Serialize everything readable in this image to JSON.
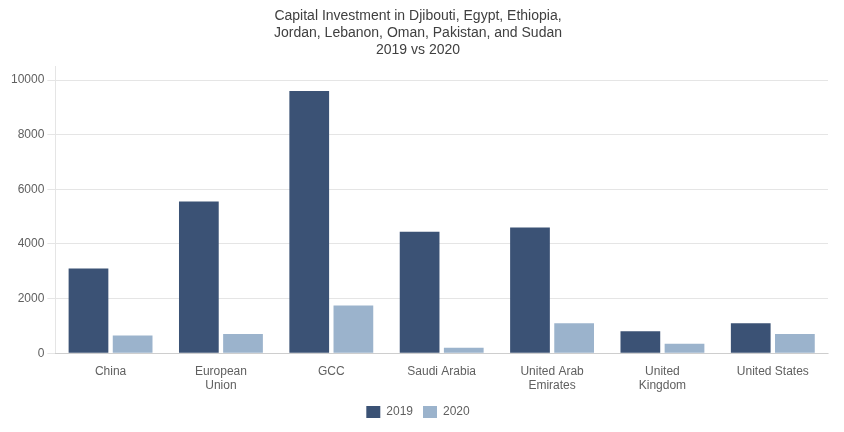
{
  "chart_data": {
    "type": "bar",
    "title": "Capital Investment in Djibouti, Egypt, Ethiopia,\nJordan, Lebanon, Oman, Pakistan, and Sudan\n2019 vs 2020",
    "categories": [
      "China",
      "European\nUnion",
      "GCC",
      "Saudi Arabia",
      "United Arab\nEmirates",
      "United\nKingdom",
      "United States"
    ],
    "series": [
      {
        "name": "2019",
        "color": "#3B5275",
        "values": [
          3100,
          5550,
          9600,
          4450,
          4600,
          800,
          1100
        ]
      },
      {
        "name": "2020",
        "color": "#9BB3CC",
        "values": [
          650,
          700,
          1750,
          200,
          1100,
          350,
          700
        ]
      }
    ],
    "ylim": [
      0,
      10500
    ],
    "yticks": [
      0,
      2000,
      4000,
      6000,
      8000,
      10000
    ],
    "grid": true,
    "legend": "bottom"
  }
}
